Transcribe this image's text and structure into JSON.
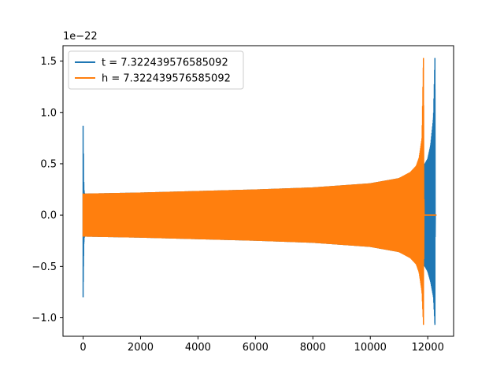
{
  "chart_data": {
    "type": "line",
    "title": "",
    "xlabel": "",
    "ylabel": "",
    "y_scale_label": "1e−22",
    "xlim": [
      -700,
      12900
    ],
    "ylim": [
      -1.18e-22,
      1.65e-22
    ],
    "x_ticks": [
      0,
      2000,
      4000,
      6000,
      8000,
      10000,
      12000
    ],
    "x_tick_labels": [
      "0",
      "2000",
      "4000",
      "6000",
      "8000",
      "10000",
      "12000"
    ],
    "y_ticks": [
      -1e-22,
      -5e-23,
      0.0,
      5e-23,
      1e-22,
      1.5e-22
    ],
    "y_tick_labels": [
      "−1.0",
      "−0.5",
      "0.0",
      "0.5",
      "1.0",
      "1.5"
    ],
    "grid": false,
    "legend_position": "top-left",
    "series": [
      {
        "name": "t = 7.322439576585092",
        "color": "#1f77b4",
        "envelope": {
          "x": [
            0,
            12,
            25,
            40,
            60,
            100,
            2000,
            4000,
            6000,
            8000,
            10000,
            11000,
            11500,
            11800,
            11900,
            12000,
            12100,
            12200,
            12250,
            12260,
            12280,
            12300
          ],
          "upper": [
            8.7e-23,
            6e-23,
            3e-23,
            2.2e-23,
            2.1e-23,
            2.1e-23,
            2.2e-23,
            2.35e-23,
            2.5e-23,
            2.7e-23,
            3.1e-23,
            3.6e-23,
            4.2e-23,
            4.8e-23,
            5e-23,
            5.5e-23,
            6.8e-23,
            9.5e-23,
            1.53e-22,
            0.0,
            0.0,
            0.0
          ],
          "lower": [
            -8e-23,
            -5e-23,
            -2.8e-23,
            -2.2e-23,
            -2.1e-23,
            -2.1e-23,
            -2.2e-23,
            -2.35e-23,
            -2.5e-23,
            -2.7e-23,
            -3.1e-23,
            -3.6e-23,
            -4.2e-23,
            -4.8e-23,
            -5e-23,
            -5.5e-23,
            -6.5e-23,
            -8e-23,
            -1.07e-22,
            0.0,
            0.0,
            0.0
          ]
        }
      },
      {
        "name": "h = 7.322439576585092",
        "color": "#ff7f0e",
        "envelope": {
          "x": [
            0,
            100,
            2000,
            4000,
            6000,
            8000,
            10000,
            11000,
            11400,
            11600,
            11700,
            11800,
            11850,
            11870,
            11880,
            11900,
            12000,
            12300
          ],
          "upper": [
            2.1e-23,
            2.1e-23,
            2.2e-23,
            2.35e-23,
            2.5e-23,
            2.7e-23,
            3.1e-23,
            3.6e-23,
            4.2e-23,
            4.8e-23,
            5.6e-23,
            7.5e-23,
            1.53e-22,
            0.0,
            0.0,
            0.0,
            0.0,
            0.0
          ],
          "lower": [
            -2.1e-23,
            -2.1e-23,
            -2.2e-23,
            -2.35e-23,
            -2.5e-23,
            -2.7e-23,
            -3.1e-23,
            -3.6e-23,
            -4.2e-23,
            -4.8e-23,
            -5.6e-23,
            -7.5e-23,
            -1.07e-22,
            0.0,
            0.0,
            0.0,
            0.0,
            0.0
          ]
        }
      }
    ]
  }
}
